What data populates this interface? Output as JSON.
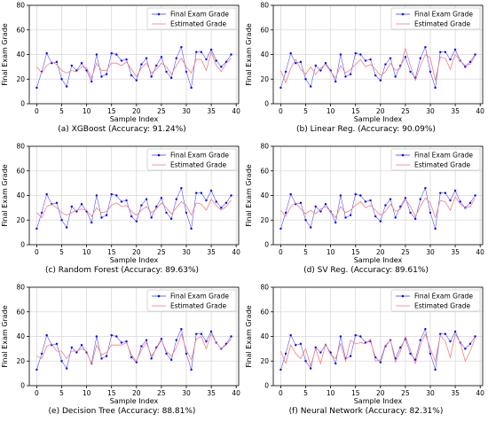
{
  "chart_data": [
    {
      "type": "line",
      "caption": "(a) XGBoost (Accuracy: 91.24%)",
      "xlabel": "Sample Index",
      "ylabel": "Final Exam Grade",
      "xlim": [
        -1.5,
        40.5
      ],
      "ylim": [
        0,
        80
      ],
      "xticks": [
        0,
        5,
        10,
        15,
        20,
        25,
        30,
        35,
        40
      ],
      "yticks": [
        0,
        20,
        40,
        60,
        80
      ],
      "grid": true,
      "legend": "top-right",
      "x": [
        0,
        1,
        2,
        3,
        4,
        5,
        6,
        7,
        8,
        9,
        10,
        11,
        12,
        13,
        14,
        15,
        16,
        17,
        18,
        19,
        20,
        21,
        22,
        23,
        24,
        25,
        26,
        27,
        28,
        29,
        30,
        31,
        32,
        33,
        34,
        35,
        36,
        37,
        38,
        39
      ],
      "series": [
        {
          "name": "Final Exam Grade",
          "color": "#0000ff",
          "marker": "dot",
          "values": [
            13,
            26,
            41,
            33,
            34,
            20,
            14,
            31,
            27,
            33,
            27,
            18,
            40,
            22,
            24,
            41,
            40,
            35,
            36,
            23,
            19,
            32,
            37,
            22,
            31,
            38,
            26,
            21,
            37,
            46,
            26,
            13,
            42,
            42,
            36,
            44,
            35,
            30,
            34,
            40
          ]
        },
        {
          "name": "Estimated Grade",
          "color": "#f08080",
          "marker": "none",
          "values": [
            30,
            25,
            31,
            34,
            32,
            27,
            25,
            27,
            26,
            30,
            29,
            21,
            33,
            27,
            27,
            33,
            33,
            31,
            34,
            28,
            22,
            29,
            33,
            25,
            28,
            33,
            30,
            24,
            31,
            37,
            30,
            25,
            36,
            36,
            27,
            42,
            31,
            26,
            33,
            37
          ]
        }
      ]
    },
    {
      "type": "line",
      "caption": "(b) Linear Reg. (Accuracy: 90.09%)",
      "xlabel": "Sample Index",
      "ylabel": "Final Exam Grade",
      "xlim": [
        -1.5,
        40.5
      ],
      "ylim": [
        0,
        80
      ],
      "xticks": [
        0,
        5,
        10,
        15,
        20,
        25,
        30,
        35,
        40
      ],
      "yticks": [
        0,
        20,
        40,
        60,
        80
      ],
      "grid": true,
      "legend": "top-right",
      "x": [
        0,
        1,
        2,
        3,
        4,
        5,
        6,
        7,
        8,
        9,
        10,
        11,
        12,
        13,
        14,
        15,
        16,
        17,
        18,
        19,
        20,
        21,
        22,
        23,
        24,
        25,
        26,
        27,
        28,
        29,
        30,
        31,
        32,
        33,
        34,
        35,
        36,
        37,
        38,
        39
      ],
      "series": [
        {
          "name": "Final Exam Grade",
          "color": "#0000ff",
          "marker": "dot",
          "values": [
            13,
            26,
            41,
            33,
            34,
            20,
            14,
            31,
            27,
            33,
            27,
            18,
            40,
            22,
            24,
            41,
            40,
            35,
            36,
            23,
            19,
            32,
            37,
            22,
            31,
            38,
            26,
            21,
            37,
            46,
            26,
            13,
            42,
            42,
            36,
            44,
            35,
            30,
            34,
            40
          ]
        },
        {
          "name": "Estimated Grade",
          "color": "#f08080",
          "marker": "none",
          "values": [
            27,
            17,
            29,
            36,
            28,
            24,
            30,
            24,
            29,
            32,
            26,
            21,
            31,
            25,
            28,
            32,
            36,
            30,
            32,
            28,
            23,
            26,
            33,
            27,
            29,
            45,
            31,
            19,
            31,
            40,
            37,
            19,
            38,
            37,
            28,
            40,
            35,
            31,
            32,
            39
          ]
        }
      ]
    },
    {
      "type": "line",
      "caption": "(c) Random Forest (Accuracy: 89.63%)",
      "xlabel": "Sample Index",
      "ylabel": "Final Exam Grade",
      "xlim": [
        -1.5,
        40.5
      ],
      "ylim": [
        0,
        80
      ],
      "xticks": [
        0,
        5,
        10,
        15,
        20,
        25,
        30,
        35,
        40
      ],
      "yticks": [
        0,
        20,
        40,
        60,
        80
      ],
      "grid": true,
      "legend": "top-right",
      "x": [
        0,
        1,
        2,
        3,
        4,
        5,
        6,
        7,
        8,
        9,
        10,
        11,
        12,
        13,
        14,
        15,
        16,
        17,
        18,
        19,
        20,
        21,
        22,
        23,
        24,
        25,
        26,
        27,
        28,
        29,
        30,
        31,
        32,
        33,
        34,
        35,
        36,
        37,
        38,
        39
      ],
      "series": [
        {
          "name": "Final Exam Grade",
          "color": "#0000ff",
          "marker": "dot",
          "values": [
            13,
            26,
            41,
            33,
            34,
            20,
            14,
            31,
            27,
            33,
            27,
            18,
            40,
            22,
            24,
            41,
            40,
            35,
            36,
            23,
            19,
            32,
            37,
            22,
            31,
            38,
            26,
            21,
            37,
            46,
            26,
            13,
            42,
            42,
            36,
            44,
            35,
            30,
            34,
            40
          ]
        },
        {
          "name": "Estimated Grade",
          "color": "#f08080",
          "marker": "none",
          "values": [
            26,
            22,
            31,
            33,
            30,
            26,
            24,
            26,
            28,
            29,
            28,
            23,
            30,
            26,
            27,
            32,
            34,
            31,
            32,
            27,
            24,
            28,
            31,
            26,
            29,
            34,
            30,
            25,
            30,
            35,
            32,
            24,
            34,
            33,
            28,
            37,
            32,
            28,
            31,
            36
          ]
        }
      ]
    },
    {
      "type": "line",
      "caption": "(d) SV Reg. (Accuracy: 89.61%)",
      "xlabel": "Sample Index",
      "ylabel": "Final Exam Grade",
      "xlim": [
        -1.5,
        40.5
      ],
      "ylim": [
        0,
        80
      ],
      "xticks": [
        0,
        5,
        10,
        15,
        20,
        25,
        30,
        35,
        40
      ],
      "yticks": [
        0,
        20,
        40,
        60,
        80
      ],
      "grid": true,
      "legend": "top-right",
      "x": [
        0,
        1,
        2,
        3,
        4,
        5,
        6,
        7,
        8,
        9,
        10,
        11,
        12,
        13,
        14,
        15,
        16,
        17,
        18,
        19,
        20,
        21,
        22,
        23,
        24,
        25,
        26,
        27,
        28,
        29,
        30,
        31,
        32,
        33,
        34,
        35,
        36,
        37,
        38,
        39
      ],
      "series": [
        {
          "name": "Final Exam Grade",
          "color": "#0000ff",
          "marker": "dot",
          "values": [
            13,
            26,
            41,
            33,
            34,
            20,
            14,
            31,
            27,
            33,
            27,
            18,
            40,
            22,
            24,
            41,
            40,
            35,
            36,
            23,
            19,
            32,
            37,
            22,
            31,
            38,
            26,
            21,
            37,
            46,
            26,
            13,
            42,
            42,
            36,
            44,
            35,
            30,
            34,
            40
          ]
        },
        {
          "name": "Estimated Grade",
          "color": "#f08080",
          "marker": "none",
          "values": [
            28,
            23,
            31,
            34,
            29,
            25,
            28,
            25,
            29,
            31,
            27,
            22,
            31,
            26,
            28,
            32,
            35,
            30,
            32,
            28,
            24,
            27,
            33,
            27,
            29,
            37,
            31,
            23,
            31,
            38,
            34,
            22,
            36,
            35,
            28,
            39,
            33,
            30,
            31,
            38
          ]
        }
      ]
    },
    {
      "type": "line",
      "caption": "(e) Decision Tree (Accuracy: 88.81%)",
      "xlabel": "Sample Index",
      "ylabel": "Final Exam Grade",
      "xlim": [
        -1.5,
        40.5
      ],
      "ylim": [
        0,
        80
      ],
      "xticks": [
        0,
        5,
        10,
        15,
        20,
        25,
        30,
        35,
        40
      ],
      "yticks": [
        0,
        20,
        40,
        60,
        80
      ],
      "grid": true,
      "legend": "top-right",
      "x": [
        0,
        1,
        2,
        3,
        4,
        5,
        6,
        7,
        8,
        9,
        10,
        11,
        12,
        13,
        14,
        15,
        16,
        17,
        18,
        19,
        20,
        21,
        22,
        23,
        24,
        25,
        26,
        27,
        28,
        29,
        30,
        31,
        32,
        33,
        34,
        35,
        36,
        37,
        38,
        39
      ],
      "series": [
        {
          "name": "Final Exam Grade",
          "color": "#0000ff",
          "marker": "dot",
          "values": [
            13,
            26,
            41,
            33,
            34,
            20,
            14,
            31,
            27,
            33,
            27,
            18,
            40,
            22,
            24,
            41,
            40,
            35,
            36,
            23,
            19,
            32,
            37,
            22,
            31,
            38,
            26,
            21,
            37,
            46,
            26,
            13,
            42,
            42,
            36,
            44,
            35,
            30,
            34,
            40
          ]
        },
        {
          "name": "Estimated Grade",
          "color": "#f08080",
          "marker": "none",
          "values": [
            24,
            22,
            32,
            34,
            28,
            28,
            22,
            28,
            28,
            30,
            28,
            17,
            33,
            25,
            27,
            33,
            33,
            33,
            35,
            25,
            20,
            29,
            35,
            24,
            30,
            37,
            28,
            24,
            31,
            42,
            29,
            21,
            38,
            40,
            30,
            42,
            35,
            30,
            33,
            38
          ]
        }
      ]
    },
    {
      "type": "line",
      "caption": "(f) Neural Network (Accuracy: 82.31%)",
      "xlabel": "Sample Index",
      "ylabel": "Final Exam Grade",
      "xlim": [
        -1.5,
        40.5
      ],
      "ylim": [
        0,
        80
      ],
      "xticks": [
        0,
        5,
        10,
        15,
        20,
        25,
        30,
        35,
        40
      ],
      "yticks": [
        0,
        20,
        40,
        60,
        80
      ],
      "grid": true,
      "legend": "top-right",
      "x": [
        0,
        1,
        2,
        3,
        4,
        5,
        6,
        7,
        8,
        9,
        10,
        11,
        12,
        13,
        14,
        15,
        16,
        17,
        18,
        19,
        20,
        21,
        22,
        23,
        24,
        25,
        26,
        27,
        28,
        29,
        30,
        31,
        32,
        33,
        34,
        35,
        36,
        37,
        38,
        39
      ],
      "series": [
        {
          "name": "Final Exam Grade",
          "color": "#0000ff",
          "marker": "dot",
          "values": [
            13,
            26,
            41,
            33,
            34,
            20,
            14,
            31,
            27,
            33,
            27,
            18,
            40,
            22,
            24,
            41,
            40,
            35,
            36,
            23,
            19,
            32,
            37,
            22,
            31,
            38,
            26,
            21,
            37,
            46,
            26,
            13,
            42,
            42,
            36,
            44,
            35,
            30,
            34,
            40
          ]
        },
        {
          "name": "Estimated Grade",
          "color": "#f08080",
          "marker": "none",
          "values": [
            28,
            18,
            33,
            26,
            22,
            30,
            16,
            30,
            18,
            34,
            25,
            22,
            34,
            20,
            37,
            34,
            35,
            34,
            38,
            20,
            21,
            33,
            37,
            19,
            28,
            40,
            29,
            18,
            33,
            42,
            30,
            20,
            41,
            36,
            23,
            42,
            35,
            20,
            28,
            39
          ]
        }
      ]
    }
  ]
}
